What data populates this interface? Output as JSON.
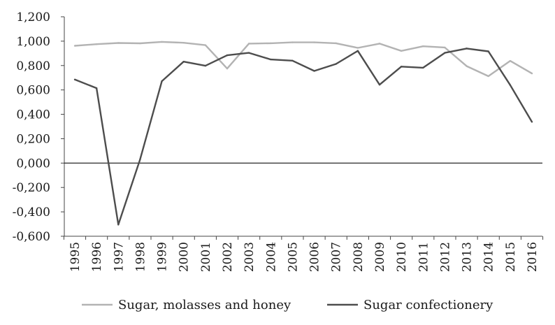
{
  "chart_data": {
    "type": "line",
    "title": "",
    "xlabel": "",
    "ylabel": "",
    "categories": [
      "1995",
      "1996",
      "1997",
      "1998",
      "1999",
      "2000",
      "2001",
      "2002",
      "2003",
      "2004",
      "2005",
      "2006",
      "2007",
      "2008",
      "2009",
      "2010",
      "2011",
      "2012",
      "2013",
      "2014",
      "2015",
      "2016"
    ],
    "ylim": [
      -0.6,
      1.2
    ],
    "yticks": [
      1.2,
      1.0,
      0.8,
      0.6,
      0.4,
      0.2,
      0.0,
      -0.2,
      -0.4,
      -0.6
    ],
    "ytick_labels": [
      "1,200",
      "1,000",
      "0,800",
      "0,600",
      "0,400",
      "0,200",
      "0,000",
      "-0,200",
      "-0,400",
      "-0,600"
    ],
    "zero_line": true,
    "grid": false,
    "legend_position": "bottom",
    "series": [
      {
        "name": "Sugar, molasses and honey",
        "color": "#b3b3b3",
        "values": [
          0.962,
          0.975,
          0.985,
          0.982,
          0.994,
          0.987,
          0.967,
          0.775,
          0.98,
          0.983,
          0.99,
          0.99,
          0.983,
          0.945,
          0.98,
          0.92,
          0.958,
          0.948,
          0.795,
          0.713,
          0.838,
          0.735
        ]
      },
      {
        "name": "Sugar confectionery",
        "color": "#4d4d4d",
        "values": [
          0.685,
          0.615,
          -0.505,
          0.03,
          0.672,
          0.832,
          0.798,
          0.884,
          0.904,
          0.85,
          0.84,
          0.756,
          0.813,
          0.92,
          0.643,
          0.791,
          0.782,
          0.904,
          0.94,
          0.916,
          0.64,
          0.338
        ]
      }
    ]
  }
}
